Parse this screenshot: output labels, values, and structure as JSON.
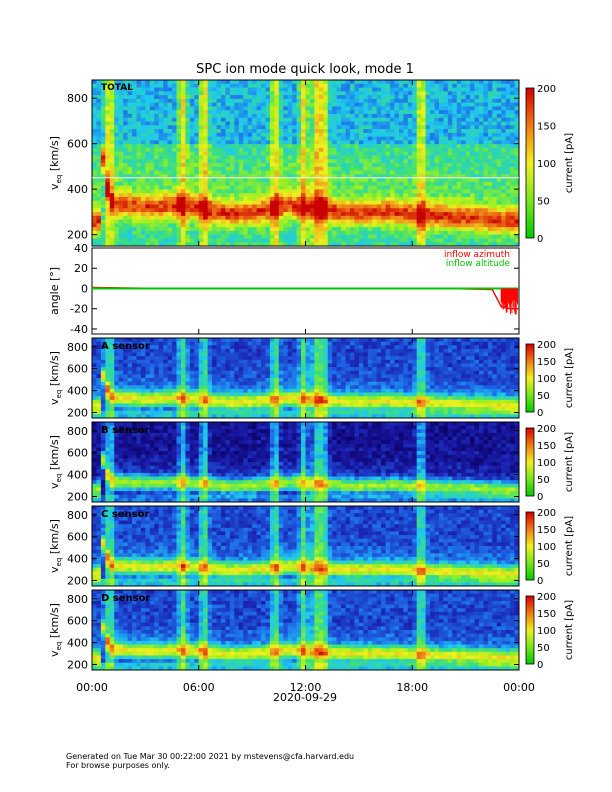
{
  "title": "SPC ion mode quick look, mode 1",
  "date_label": "2020-09-29",
  "footer": {
    "line1": "Generated on Tue Mar 30 00:22:00 2021 by mstevens@cfa.harvard.edu",
    "line2": "For browse purposes only."
  },
  "colors": {
    "colormap": [
      "#0a0060",
      "#1a1aa8",
      "#1e64e6",
      "#1ec8f0",
      "#3ce07a",
      "#9ef01e",
      "#f0f01e",
      "#f0a01e",
      "#e6500f",
      "#c80000"
    ],
    "azimuth": "#ff0000",
    "altitude": "#00c800"
  },
  "chart_data": [
    {
      "type": "heatmap",
      "panel": "TOTAL",
      "label": "TOTAL",
      "ylabel": "v_eq [km/s]",
      "ylim": [
        150,
        880
      ],
      "yticks": [
        200,
        400,
        600,
        800
      ],
      "xlim": [
        "00:00",
        "00:00"
      ],
      "xticks": [
        "00:00",
        "06:00",
        "12:00",
        "18:00",
        "00:00"
      ],
      "colorbar": {
        "label": "current [pA]",
        "range": [
          0,
          200
        ],
        "ticks": [
          0,
          50,
          100,
          150,
          200
        ]
      },
      "peak_velocity_km_s": {
        "hours": [
          0.5,
          1,
          2,
          3,
          4,
          5,
          6,
          7,
          8,
          9,
          10,
          11,
          12,
          13,
          14,
          15,
          16,
          17,
          18,
          19,
          20,
          21,
          22,
          23,
          24
        ],
        "values": [
          600,
          340,
          330,
          320,
          325,
          330,
          320,
          300,
          290,
          300,
          310,
          330,
          320,
          310,
          300,
          295,
          300,
          300,
          290,
          285,
          280,
          275,
          270,
          260,
          260
        ]
      },
      "max_current_pA": 200
    },
    {
      "type": "line",
      "panel": "angle",
      "ylabel": "angle [°]",
      "ylim": [
        -45,
        40
      ],
      "yticks": [
        -40,
        -20,
        0,
        20,
        40
      ],
      "series": [
        {
          "name": "inflow azimuth",
          "hours": [
            0,
            4,
            8,
            12,
            16,
            20,
            22.5,
            23,
            23.5,
            24
          ],
          "values": [
            1,
            0,
            0,
            0,
            0,
            0,
            -1,
            -18,
            -20,
            -20
          ]
        },
        {
          "name": "inflow altitude",
          "hours": [
            0,
            4,
            8,
            12,
            16,
            20,
            24
          ],
          "values": [
            0,
            0,
            0,
            0,
            0,
            0,
            0
          ]
        }
      ]
    },
    {
      "type": "heatmap",
      "panel": "A",
      "label": "A sensor",
      "ylabel": "v_eq [km/s]",
      "ylim": [
        150,
        880
      ],
      "yticks": [
        200,
        400,
        600,
        800
      ],
      "colorbar": {
        "label": "current [pA]",
        "range": [
          0,
          200
        ],
        "ticks": [
          0,
          50,
          100,
          150,
          200
        ]
      }
    },
    {
      "type": "heatmap",
      "panel": "B",
      "label": "B sensor",
      "ylabel": "v_eq [km/s]",
      "ylim": [
        150,
        880
      ],
      "yticks": [
        200,
        400,
        600,
        800
      ],
      "colorbar": {
        "label": "current [pA]",
        "range": [
          0,
          200
        ],
        "ticks": [
          0,
          50,
          100,
          150,
          200
        ]
      }
    },
    {
      "type": "heatmap",
      "panel": "C",
      "label": "C sensor",
      "ylabel": "v_eq [km/s]",
      "ylim": [
        150,
        880
      ],
      "yticks": [
        200,
        400,
        600,
        800
      ],
      "colorbar": {
        "label": "current [pA]",
        "range": [
          0,
          200
        ],
        "ticks": [
          0,
          50,
          100,
          150,
          200
        ]
      }
    },
    {
      "type": "heatmap",
      "panel": "D",
      "label": "D sensor",
      "ylabel": "v_eq [km/s]",
      "ylim": [
        150,
        880
      ],
      "yticks": [
        200,
        400,
        600,
        800
      ],
      "colorbar": {
        "label": "current [pA]",
        "range": [
          0,
          200
        ],
        "ticks": [
          0,
          50,
          100,
          150,
          200
        ]
      }
    }
  ]
}
